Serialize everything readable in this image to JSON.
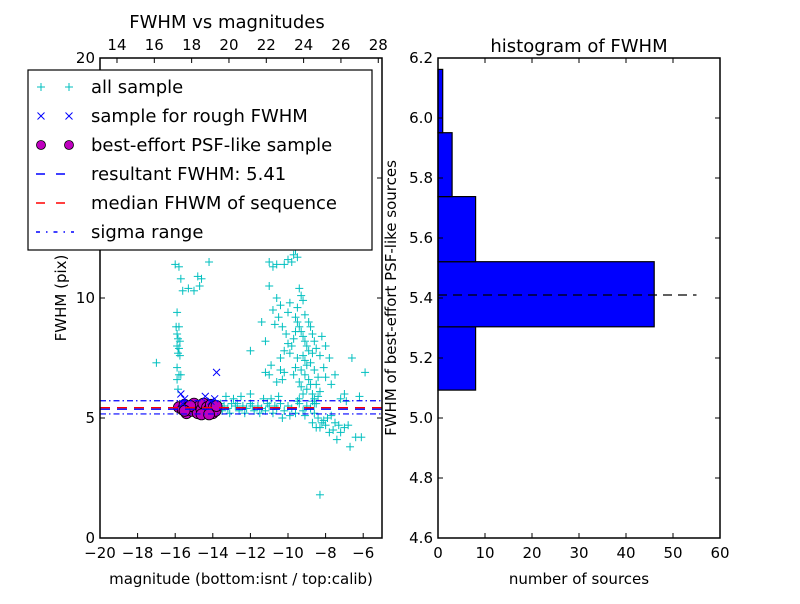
{
  "chart_data": [
    {
      "type": "scatter",
      "title": "FWHM vs magnitudes",
      "xlabel": "magnitude (bottom:isnt / top:calib)",
      "ylabel": "FWHM (pix)",
      "xlim": [
        -20,
        -5
      ],
      "ylim": [
        0,
        20
      ],
      "xticks": [
        "−20",
        "−18",
        "−16",
        "−14",
        "−12",
        "−10",
        "−8",
        "−6"
      ],
      "xtick_values": [
        -20,
        -18,
        -16,
        -14,
        -12,
        -10,
        -8,
        -6
      ],
      "yticks": [
        "0",
        "5",
        "10",
        "15",
        "20"
      ],
      "ytick_values": [
        0,
        5,
        10,
        15,
        20
      ],
      "top_axis": {
        "ticks": [
          "14",
          "16",
          "18",
          "20",
          "22",
          "24",
          "26",
          "28"
        ],
        "tick_values": [
          14,
          16,
          18,
          20,
          22,
          24,
          26,
          28
        ],
        "xlim": [
          13.09,
          28.2
        ]
      },
      "legend": {
        "placement": "top-left",
        "entries": [
          {
            "label": "all sample",
            "marker": "+",
            "color": "#00bfbf"
          },
          {
            "label": "sample for rough FWHM",
            "marker": "x",
            "color": "#0000ff"
          },
          {
            "label": "best-effort PSF-like sample",
            "marker": "o",
            "color": "#bf00bf"
          },
          {
            "label": "resultant FWHM: 5.41",
            "style": "dashed",
            "color": "#0000ff"
          },
          {
            "label": "median FHWM of sequence",
            "style": "dashed",
            "color": "#ff0000"
          },
          {
            "label": "sigma range",
            "style": "dashdot",
            "color": "#0000ff"
          }
        ]
      },
      "hlines": {
        "resultant_fwhm": 5.41,
        "median_fwhm": 5.41,
        "sigma_low": 5.17,
        "sigma_high": 5.72
      },
      "series": [
        {
          "name": "all sample",
          "color": "#00bfbf",
          "points": [
            [
              -16.0,
              11.4
            ],
            [
              -15.8,
              11.3
            ],
            [
              -15.7,
              10.8
            ],
            [
              -15.6,
              10.3
            ],
            [
              -15.9,
              9.4
            ],
            [
              -15.95,
              8.8
            ],
            [
              -15.8,
              8.8
            ],
            [
              -15.9,
              8.5
            ],
            [
              -15.85,
              8.3
            ],
            [
              -15.75,
              8.2
            ],
            [
              -15.9,
              8.0
            ],
            [
              -15.8,
              7.9
            ],
            [
              -15.85,
              7.7
            ],
            [
              -15.75,
              7.6
            ],
            [
              -17.0,
              7.3
            ],
            [
              -15.9,
              7.1
            ],
            [
              -15.8,
              6.8
            ],
            [
              -15.7,
              6.8
            ],
            [
              -15.9,
              6.6
            ],
            [
              -15.85,
              6.2
            ],
            [
              -14.8,
              10.9
            ],
            [
              -14.6,
              10.8
            ],
            [
              -14.7,
              10.5
            ],
            [
              -15.3,
              10.4
            ],
            [
              -15.0,
              10.3
            ],
            [
              -14.2,
              11.5
            ],
            [
              -12.0,
              7.8
            ],
            [
              -11.2,
              6.9
            ],
            [
              -11.0,
              6.8
            ],
            [
              -10.9,
              7.2
            ],
            [
              -10.6,
              6.5
            ],
            [
              -10.4,
              7.5
            ],
            [
              -10.3,
              6.6
            ],
            [
              -10.2,
              6.9
            ],
            [
              -12.0,
              6.0
            ],
            [
              -11.0,
              11.5
            ],
            [
              -10.8,
              11.3
            ],
            [
              -10.6,
              11.4
            ],
            [
              -10.2,
              11.4
            ],
            [
              -10.0,
              11.6
            ],
            [
              -9.8,
              11.5
            ],
            [
              -9.6,
              12.0
            ],
            [
              -9.7,
              11.8
            ],
            [
              -9.5,
              11.7
            ],
            [
              -11.0,
              10.5
            ],
            [
              -10.6,
              10.0
            ],
            [
              -10.0,
              9.4
            ],
            [
              -9.9,
              9.8
            ],
            [
              -9.6,
              9.2
            ],
            [
              -9.5,
              9.0
            ],
            [
              -9.4,
              8.8
            ],
            [
              -9.3,
              8.6
            ],
            [
              -9.2,
              8.4
            ],
            [
              -9.1,
              8.2
            ],
            [
              -9.0,
              8.0
            ],
            [
              -8.9,
              7.8
            ],
            [
              -9.2,
              7.6
            ],
            [
              -9.1,
              7.4
            ],
            [
              -9.0,
              7.2
            ],
            [
              -9.3,
              7.0
            ],
            [
              -9.1,
              6.8
            ],
            [
              -8.9,
              6.6
            ],
            [
              -8.8,
              6.4
            ],
            [
              -9.0,
              6.2
            ],
            [
              -8.7,
              6.0
            ],
            [
              -8.6,
              5.8
            ],
            [
              -8.5,
              5.6
            ],
            [
              -9.4,
              10.4
            ],
            [
              -9.3,
              10.1
            ],
            [
              -9.2,
              9.9
            ],
            [
              -9.5,
              9.6
            ],
            [
              -9.1,
              9.3
            ],
            [
              -8.9,
              9.0
            ],
            [
              -8.8,
              8.8
            ],
            [
              -8.7,
              8.5
            ],
            [
              -8.6,
              8.2
            ],
            [
              -8.5,
              7.9
            ],
            [
              -8.7,
              7.7
            ],
            [
              -8.8,
              7.3
            ],
            [
              -8.6,
              7.0
            ],
            [
              -8.4,
              6.7
            ],
            [
              -8.5,
              6.4
            ],
            [
              -8.3,
              6.1
            ],
            [
              -8.4,
              5.9
            ],
            [
              -9.6,
              8.6
            ],
            [
              -9.7,
              8.3
            ],
            [
              -9.8,
              8.0
            ],
            [
              -9.9,
              7.7
            ],
            [
              -9.5,
              7.5
            ],
            [
              -9.6,
              7.1
            ],
            [
              -9.7,
              6.8
            ],
            [
              -9.4,
              6.5
            ],
            [
              -9.3,
              6.3
            ],
            [
              -9.2,
              6.0
            ],
            [
              -9.4,
              5.8
            ],
            [
              -10.4,
              9.7
            ],
            [
              -10.5,
              9.2
            ],
            [
              -10.3,
              8.8
            ],
            [
              -10.8,
              9.5
            ],
            [
              -10.7,
              8.9
            ],
            [
              -11.2,
              8.2
            ],
            [
              -11.4,
              9.0
            ],
            [
              -10.1,
              8.5
            ],
            [
              -10.0,
              8.1
            ],
            [
              -10.2,
              7.8
            ],
            [
              -10.4,
              7.0
            ],
            [
              -8.2,
              8.4
            ],
            [
              -8.0,
              8.0
            ],
            [
              -8.3,
              7.6
            ],
            [
              -7.8,
              7.5
            ],
            [
              -8.1,
              7.1
            ],
            [
              -8.0,
              6.7
            ],
            [
              -7.7,
              6.4
            ],
            [
              -7.5,
              6.8
            ],
            [
              -6.6,
              7.5
            ],
            [
              -5.9,
              6.9
            ],
            [
              -6.2,
              5.9
            ],
            [
              -7.0,
              6.0
            ],
            [
              -7.2,
              5.8
            ],
            [
              -6.9,
              5.7
            ],
            [
              -8.6,
              5.2
            ],
            [
              -8.4,
              5.0
            ],
            [
              -8.2,
              4.8
            ],
            [
              -8.0,
              4.7
            ],
            [
              -8.3,
              4.6
            ],
            [
              -8.1,
              4.9
            ],
            [
              -7.9,
              5.0
            ],
            [
              -7.7,
              5.1
            ],
            [
              -7.5,
              4.8
            ],
            [
              -7.3,
              4.7
            ],
            [
              -7.6,
              4.5
            ],
            [
              -7.8,
              4.4
            ],
            [
              -8.5,
              4.6
            ],
            [
              -8.7,
              4.8
            ],
            [
              -7.2,
              4.4
            ],
            [
              -7.0,
              4.6
            ],
            [
              -6.8,
              4.7
            ],
            [
              -6.4,
              4.2
            ],
            [
              -6.1,
              4.2
            ],
            [
              -6.7,
              3.8
            ],
            [
              -7.4,
              4.1
            ],
            [
              -8.3,
              1.8
            ],
            [
              -13.6,
              5.6
            ],
            [
              -13.4,
              5.5
            ],
            [
              -13.2,
              5.4
            ],
            [
              -13.0,
              5.6
            ],
            [
              -12.8,
              5.5
            ],
            [
              -12.6,
              5.3
            ],
            [
              -12.4,
              5.5
            ],
            [
              -12.2,
              5.4
            ],
            [
              -12.0,
              5.6
            ],
            [
              -11.8,
              5.3
            ],
            [
              -11.6,
              5.5
            ],
            [
              -11.4,
              5.4
            ],
            [
              -11.2,
              5.3
            ],
            [
              -11.0,
              5.5
            ],
            [
              -10.8,
              5.2
            ],
            [
              -10.6,
              5.4
            ],
            [
              -10.4,
              5.6
            ],
            [
              -10.2,
              5.3
            ],
            [
              -10.0,
              5.5
            ],
            [
              -9.8,
              5.4
            ],
            [
              -9.6,
              5.2
            ],
            [
              -9.4,
              5.6
            ],
            [
              -9.2,
              5.3
            ],
            [
              -9.0,
              5.5
            ],
            [
              -8.8,
              5.4
            ],
            [
              -8.6,
              5.6
            ],
            [
              -13.5,
              5.3
            ],
            [
              -13.1,
              5.2
            ],
            [
              -12.7,
              5.6
            ],
            [
              -12.3,
              5.2
            ],
            [
              -11.9,
              5.5
            ],
            [
              -11.5,
              5.2
            ],
            [
              -11.1,
              5.6
            ],
            [
              -10.7,
              5.5
            ],
            [
              -10.3,
              5.0
            ],
            [
              -9.9,
              5.1
            ],
            [
              -9.5,
              5.7
            ],
            [
              -9.1,
              5.1
            ],
            [
              -8.7,
              5.7
            ],
            [
              -10.9,
              5.8
            ],
            [
              -10.5,
              5.9
            ],
            [
              -11.3,
              5.8
            ],
            [
              -12.5,
              5.9
            ],
            [
              -12.9,
              5.8
            ],
            [
              -13.3,
              5.9
            ]
          ]
        },
        {
          "name": "sample for rough FWHM",
          "color": "#0000ff",
          "points": [
            [
              -13.8,
              6.9
            ],
            [
              -15.7,
              6.0
            ],
            [
              -15.5,
              5.8
            ],
            [
              -14.4,
              5.9
            ],
            [
              -14.1,
              5.7
            ],
            [
              -13.9,
              5.8
            ],
            [
              -15.6,
              5.6
            ]
          ]
        },
        {
          "name": "best-effort PSF-like sample",
          "color": "#bf00bf",
          "points": [
            [
              -15.8,
              5.45
            ],
            [
              -15.6,
              5.35
            ],
            [
              -15.5,
              5.55
            ],
            [
              -15.4,
              5.2
            ],
            [
              -15.3,
              5.45
            ],
            [
              -15.1,
              5.3
            ],
            [
              -15.0,
              5.6
            ],
            [
              -14.9,
              5.4
            ],
            [
              -14.8,
              5.2
            ],
            [
              -14.7,
              5.5
            ],
            [
              -14.6,
              5.35
            ],
            [
              -14.5,
              5.6
            ],
            [
              -14.4,
              5.25
            ],
            [
              -14.3,
              5.45
            ],
            [
              -14.2,
              5.35
            ],
            [
              -14.1,
              5.55
            ],
            [
              -14.0,
              5.2
            ],
            [
              -13.95,
              5.45
            ],
            [
              -13.85,
              5.3
            ],
            [
              -13.8,
              5.5
            ],
            [
              -15.2,
              5.5
            ],
            [
              -14.6,
              5.15
            ],
            [
              -15.5,
              5.3
            ],
            [
              -14.2,
              5.15
            ]
          ]
        }
      ]
    },
    {
      "type": "bar",
      "orientation": "horizontal",
      "title": "histogram of FWHM",
      "xlabel": "number of sources",
      "ylabel": "FWHM of best-effort PSF-like sources",
      "xlim": [
        0,
        60
      ],
      "ylim": [
        4.6,
        6.2
      ],
      "xticks": [
        "0",
        "10",
        "20",
        "30",
        "40",
        "50",
        "60"
      ],
      "xtick_values": [
        0,
        10,
        20,
        30,
        40,
        50,
        60
      ],
      "yticks": [
        "4.6",
        "4.8",
        "5.0",
        "5.2",
        "5.4",
        "5.6",
        "5.8",
        "6.0",
        "6.2"
      ],
      "ytick_values": [
        4.6,
        4.8,
        5.0,
        5.2,
        5.4,
        5.6,
        5.8,
        6.0,
        6.2
      ],
      "bar_color": "#0000ff",
      "bins": [
        {
          "low": 5.093,
          "high": 5.304,
          "count": 8
        },
        {
          "low": 5.304,
          "high": 5.521,
          "count": 46
        },
        {
          "low": 5.521,
          "high": 5.738,
          "count": 8
        },
        {
          "low": 5.738,
          "high": 5.951,
          "count": 3
        },
        {
          "low": 5.951,
          "high": 6.162,
          "count": 1
        }
      ],
      "hline": {
        "value": 5.41,
        "style": "dashed",
        "color": "#000000",
        "xmax": 55
      }
    }
  ]
}
